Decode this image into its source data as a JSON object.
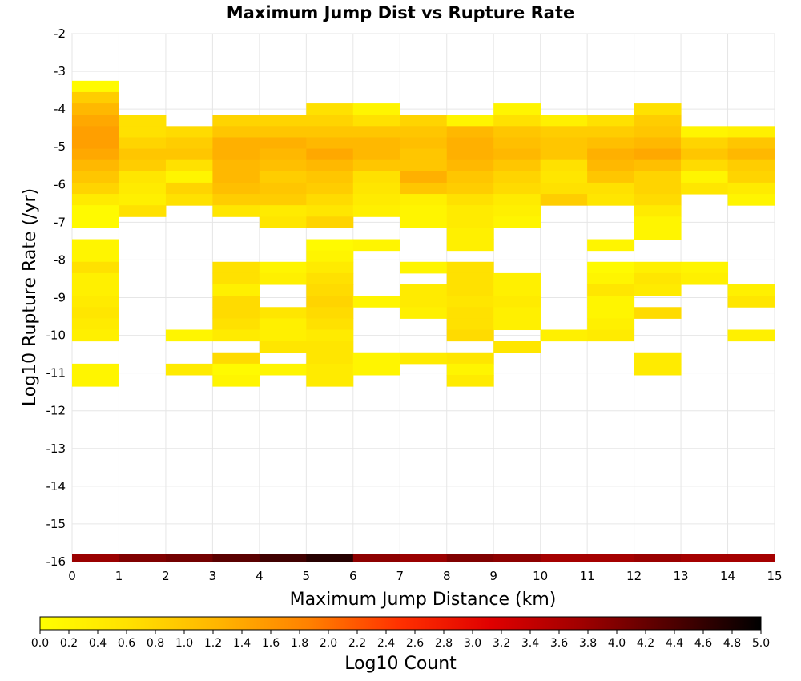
{
  "chart_data": {
    "type": "heatmap",
    "title": "Maximum Jump Dist vs Rupture Rate",
    "xlabel": "Maximum Jump Distance (km)",
    "ylabel": "Log10 Rupture Rate (/yr)",
    "xlim": [
      0,
      15
    ],
    "ylim": [
      -16,
      -2
    ],
    "x_ticks": [
      "0",
      "1",
      "2",
      "3",
      "4",
      "5",
      "6",
      "7",
      "8",
      "9",
      "10",
      "11",
      "12",
      "13",
      "14",
      "15"
    ],
    "y_ticks": [
      "-2",
      "-3",
      "-4",
      "-5",
      "-6",
      "-7",
      "-8",
      "-9",
      "-10",
      "-11",
      "-12",
      "-13",
      "-14",
      "-15",
      "-16"
    ],
    "x_bin_width": 1,
    "y_bin_height": 0.3,
    "colorbar": {
      "label": "Log10 Count",
      "range": [
        0,
        5
      ],
      "ticks": [
        "0.0",
        "0.2",
        "0.4",
        "0.6",
        "0.8",
        "1.0",
        "1.2",
        "1.4",
        "1.6",
        "1.8",
        "2.0",
        "2.2",
        "2.4",
        "2.6",
        "2.8",
        "3.0",
        "3.2",
        "3.4",
        "3.6",
        "3.8",
        "4.0",
        "4.2",
        "4.4",
        "4.6",
        "4.8",
        "5.0"
      ],
      "colors": [
        "#ffff00",
        "#ffe000",
        "#ffb400",
        "#ff8000",
        "#ff3000",
        "#e00000",
        "#a00000",
        "#500000",
        "#000000"
      ]
    },
    "grid": true,
    "cells": [
      [
        0,
        -3.4,
        0.1
      ],
      [
        0,
        -3.7,
        0.9
      ],
      [
        0,
        -4.0,
        1.2
      ],
      [
        0,
        -4.3,
        1.4
      ],
      [
        0,
        -4.6,
        1.5
      ],
      [
        0,
        -4.9,
        1.5
      ],
      [
        0,
        -5.2,
        1.4
      ],
      [
        0,
        -5.5,
        1.2
      ],
      [
        0,
        -5.8,
        1.0
      ],
      [
        0,
        -6.1,
        0.8
      ],
      [
        0,
        -6.4,
        0.4
      ],
      [
        0,
        -6.7,
        0.1
      ],
      [
        0,
        -7.0,
        0.1
      ],
      [
        0,
        -7.6,
        0.2
      ],
      [
        0,
        -7.9,
        0.2
      ],
      [
        0,
        -8.2,
        0.6
      ],
      [
        0,
        -8.5,
        0.3
      ],
      [
        0,
        -8.8,
        0.3
      ],
      [
        0,
        -9.1,
        0.4
      ],
      [
        0,
        -9.4,
        0.5
      ],
      [
        0,
        -9.7,
        0.4
      ],
      [
        0,
        -10.0,
        0.3
      ],
      [
        0,
        -10.9,
        0.2
      ],
      [
        0,
        -11.2,
        0.2
      ],
      [
        1,
        -4.3,
        0.6
      ],
      [
        1,
        -4.6,
        0.6
      ],
      [
        1,
        -4.9,
        0.8
      ],
      [
        1,
        -5.2,
        1.0
      ],
      [
        1,
        -5.5,
        0.9
      ],
      [
        1,
        -5.8,
        0.5
      ],
      [
        1,
        -6.1,
        0.4
      ],
      [
        1,
        -6.4,
        0.3
      ],
      [
        1,
        -6.7,
        0.6
      ],
      [
        2,
        -4.6,
        0.7
      ],
      [
        2,
        -4.9,
        0.9
      ],
      [
        2,
        -5.2,
        1.0
      ],
      [
        2,
        -5.5,
        0.6
      ],
      [
        2,
        -5.8,
        0.2
      ],
      [
        2,
        -6.1,
        0.8
      ],
      [
        2,
        -6.4,
        0.6
      ],
      [
        2,
        -10.0,
        0.2
      ],
      [
        2,
        -10.9,
        0.4
      ],
      [
        3,
        -4.3,
        0.8
      ],
      [
        3,
        -4.6,
        1.0
      ],
      [
        3,
        -4.9,
        1.3
      ],
      [
        3,
        -5.2,
        1.3
      ],
      [
        3,
        -5.5,
        1.2
      ],
      [
        3,
        -5.8,
        1.2
      ],
      [
        3,
        -6.1,
        1.1
      ],
      [
        3,
        -6.4,
        0.9
      ],
      [
        3,
        -6.7,
        0.5
      ],
      [
        3,
        -8.2,
        0.6
      ],
      [
        3,
        -8.5,
        0.6
      ],
      [
        3,
        -8.8,
        0.3
      ],
      [
        3,
        -9.1,
        0.7
      ],
      [
        3,
        -9.4,
        0.7
      ],
      [
        3,
        -9.7,
        0.6
      ],
      [
        3,
        -10.0,
        0.4
      ],
      [
        3,
        -10.6,
        0.7
      ],
      [
        3,
        -10.9,
        0.1
      ],
      [
        3,
        -11.2,
        0.2
      ],
      [
        4,
        -4.3,
        0.8
      ],
      [
        4,
        -4.6,
        1.0
      ],
      [
        4,
        -4.9,
        1.3
      ],
      [
        4,
        -5.2,
        1.2
      ],
      [
        4,
        -5.5,
        1.1
      ],
      [
        4,
        -5.8,
        0.9
      ],
      [
        4,
        -6.1,
        1.0
      ],
      [
        4,
        -6.4,
        0.9
      ],
      [
        4,
        -6.7,
        0.4
      ],
      [
        4,
        -7.0,
        0.5
      ],
      [
        4,
        -8.2,
        0.2
      ],
      [
        4,
        -8.5,
        0.3
      ],
      [
        4,
        -9.4,
        0.5
      ],
      [
        4,
        -9.7,
        0.3
      ],
      [
        4,
        -10.0,
        0.3
      ],
      [
        4,
        -10.3,
        0.5
      ],
      [
        4,
        -10.9,
        0.2
      ],
      [
        5,
        -4.0,
        0.6
      ],
      [
        5,
        -4.3,
        0.8
      ],
      [
        5,
        -4.6,
        1.0
      ],
      [
        5,
        -4.9,
        1.2
      ],
      [
        5,
        -5.2,
        1.4
      ],
      [
        5,
        -5.5,
        1.2
      ],
      [
        5,
        -5.8,
        1.0
      ],
      [
        5,
        -6.1,
        0.9
      ],
      [
        5,
        -6.4,
        0.7
      ],
      [
        5,
        -6.7,
        0.5
      ],
      [
        5,
        -7.0,
        0.8
      ],
      [
        5,
        -7.6,
        0.1
      ],
      [
        5,
        -7.9,
        0.2
      ],
      [
        5,
        -8.2,
        0.4
      ],
      [
        5,
        -8.5,
        0.6
      ],
      [
        5,
        -8.8,
        0.7
      ],
      [
        5,
        -9.1,
        0.8
      ],
      [
        5,
        -9.4,
        0.7
      ],
      [
        5,
        -9.7,
        0.6
      ],
      [
        5,
        -10.0,
        0.4
      ],
      [
        5,
        -10.3,
        0.5
      ],
      [
        5,
        -10.6,
        0.5
      ],
      [
        5,
        -10.9,
        0.4
      ],
      [
        5,
        -11.2,
        0.4
      ],
      [
        6,
        -4.0,
        0.2
      ],
      [
        6,
        -4.3,
        0.6
      ],
      [
        6,
        -4.6,
        1.0
      ],
      [
        6,
        -4.9,
        1.2
      ],
      [
        6,
        -5.2,
        1.2
      ],
      [
        6,
        -5.5,
        1.0
      ],
      [
        6,
        -5.8,
        0.6
      ],
      [
        6,
        -6.1,
        0.5
      ],
      [
        6,
        -6.4,
        0.4
      ],
      [
        6,
        -6.7,
        0.3
      ],
      [
        6,
        -7.6,
        0.2
      ],
      [
        6,
        -9.1,
        0.2
      ],
      [
        6,
        -10.6,
        0.2
      ],
      [
        6,
        -10.9,
        0.2
      ],
      [
        7,
        -4.3,
        0.8
      ],
      [
        7,
        -4.6,
        1.0
      ],
      [
        7,
        -4.9,
        1.1
      ],
      [
        7,
        -5.2,
        1.0
      ],
      [
        7,
        -5.5,
        1.0
      ],
      [
        7,
        -5.8,
        1.3
      ],
      [
        7,
        -6.1,
        1.0
      ],
      [
        7,
        -6.4,
        0.3
      ],
      [
        7,
        -6.7,
        0.2
      ],
      [
        7,
        -7.0,
        0.2
      ],
      [
        7,
        -8.2,
        0.2
      ],
      [
        7,
        -8.8,
        0.4
      ],
      [
        7,
        -9.1,
        0.4
      ],
      [
        7,
        -9.4,
        0.3
      ],
      [
        7,
        -10.6,
        0.4
      ],
      [
        8,
        -4.3,
        0.2
      ],
      [
        8,
        -4.6,
        1.2
      ],
      [
        8,
        -4.9,
        1.3
      ],
      [
        8,
        -5.2,
        1.3
      ],
      [
        8,
        -5.5,
        1.2
      ],
      [
        8,
        -5.8,
        1.0
      ],
      [
        8,
        -6.1,
        0.9
      ],
      [
        8,
        -6.4,
        0.6
      ],
      [
        8,
        -6.7,
        0.4
      ],
      [
        8,
        -7.0,
        0.4
      ],
      [
        8,
        -7.3,
        0.3
      ],
      [
        8,
        -7.6,
        0.3
      ],
      [
        8,
        -8.2,
        0.6
      ],
      [
        8,
        -8.5,
        0.6
      ],
      [
        8,
        -8.8,
        0.6
      ],
      [
        8,
        -9.1,
        0.5
      ],
      [
        8,
        -9.4,
        0.6
      ],
      [
        8,
        -9.7,
        0.6
      ],
      [
        8,
        -10.0,
        0.7
      ],
      [
        8,
        -10.6,
        0.5
      ],
      [
        8,
        -10.9,
        0.2
      ],
      [
        8,
        -11.2,
        0.4
      ],
      [
        9,
        -4.0,
        0.2
      ],
      [
        9,
        -4.3,
        0.6
      ],
      [
        9,
        -4.6,
        1.0
      ],
      [
        9,
        -4.9,
        1.1
      ],
      [
        9,
        -5.2,
        1.2
      ],
      [
        9,
        -5.5,
        1.0
      ],
      [
        9,
        -5.8,
        0.8
      ],
      [
        9,
        -6.1,
        0.7
      ],
      [
        9,
        -6.4,
        0.4
      ],
      [
        9,
        -6.7,
        0.3
      ],
      [
        9,
        -7.0,
        0.2
      ],
      [
        9,
        -8.5,
        0.3
      ],
      [
        9,
        -8.8,
        0.3
      ],
      [
        9,
        -9.1,
        0.4
      ],
      [
        9,
        -9.4,
        0.3
      ],
      [
        9,
        -9.7,
        0.3
      ],
      [
        9,
        -10.3,
        0.5
      ],
      [
        10,
        -4.3,
        0.3
      ],
      [
        10,
        -4.6,
        0.9
      ],
      [
        10,
        -4.9,
        1.0
      ],
      [
        10,
        -5.2,
        1.0
      ],
      [
        10,
        -5.5,
        0.6
      ],
      [
        10,
        -5.8,
        0.5
      ],
      [
        10,
        -6.1,
        0.6
      ],
      [
        10,
        -6.4,
        0.9
      ],
      [
        10,
        -10.0,
        0.3
      ],
      [
        11,
        -4.3,
        0.6
      ],
      [
        11,
        -4.6,
        0.9
      ],
      [
        11,
        -4.9,
        1.1
      ],
      [
        11,
        -5.2,
        1.3
      ],
      [
        11,
        -5.5,
        1.2
      ],
      [
        11,
        -5.8,
        1.0
      ],
      [
        11,
        -6.1,
        0.6
      ],
      [
        11,
        -6.4,
        0.5
      ],
      [
        11,
        -7.6,
        0.2
      ],
      [
        11,
        -8.2,
        0.1
      ],
      [
        11,
        -8.5,
        0.2
      ],
      [
        11,
        -8.8,
        0.5
      ],
      [
        11,
        -9.1,
        0.2
      ],
      [
        11,
        -9.4,
        0.2
      ],
      [
        11,
        -9.7,
        0.3
      ],
      [
        11,
        -10.0,
        0.4
      ],
      [
        12,
        -4.0,
        0.6
      ],
      [
        12,
        -4.3,
        0.9
      ],
      [
        12,
        -4.6,
        1.0
      ],
      [
        12,
        -4.9,
        1.2
      ],
      [
        12,
        -5.2,
        1.4
      ],
      [
        12,
        -5.5,
        1.1
      ],
      [
        12,
        -5.8,
        0.8
      ],
      [
        12,
        -6.1,
        0.8
      ],
      [
        12,
        -6.4,
        0.7
      ],
      [
        12,
        -6.7,
        0.4
      ],
      [
        12,
        -7.0,
        0.2
      ],
      [
        12,
        -7.3,
        0.2
      ],
      [
        12,
        -8.2,
        0.3
      ],
      [
        12,
        -8.5,
        0.5
      ],
      [
        12,
        -8.8,
        0.4
      ],
      [
        12,
        -9.4,
        0.7
      ],
      [
        12,
        -10.6,
        0.4
      ],
      [
        12,
        -10.9,
        0.4
      ],
      [
        13,
        -4.6,
        0.2
      ],
      [
        13,
        -4.9,
        0.8
      ],
      [
        13,
        -5.2,
        1.0
      ],
      [
        13,
        -5.5,
        0.7
      ],
      [
        13,
        -5.8,
        0.2
      ],
      [
        13,
        -6.1,
        0.5
      ],
      [
        13,
        -8.2,
        0.2
      ],
      [
        13,
        -8.5,
        0.3
      ],
      [
        14,
        -4.6,
        0.3
      ],
      [
        14,
        -4.9,
        1.0
      ],
      [
        14,
        -5.2,
        1.2
      ],
      [
        14,
        -5.5,
        0.9
      ],
      [
        14,
        -5.8,
        0.8
      ],
      [
        14,
        -6.1,
        0.4
      ],
      [
        14,
        -6.4,
        0.2
      ],
      [
        14,
        -8.8,
        0.3
      ],
      [
        14,
        -9.1,
        0.5
      ],
      [
        14,
        -10.0,
        0.3
      ]
    ],
    "bottom_row": [
      [
        0,
        -16,
        3.8
      ],
      [
        1,
        -16,
        4.0
      ],
      [
        2,
        -16,
        4.1
      ],
      [
        3,
        -16,
        4.3
      ],
      [
        4,
        -16,
        4.5
      ],
      [
        5,
        -16,
        4.7
      ],
      [
        6,
        -16,
        3.9
      ],
      [
        7,
        -16,
        3.8
      ],
      [
        8,
        -16,
        4.0
      ],
      [
        9,
        -16,
        3.9
      ],
      [
        10,
        -16,
        3.7
      ],
      [
        11,
        -16,
        3.7
      ],
      [
        12,
        -16,
        3.8
      ],
      [
        13,
        -16,
        3.7
      ],
      [
        14,
        -16,
        3.7
      ]
    ]
  }
}
